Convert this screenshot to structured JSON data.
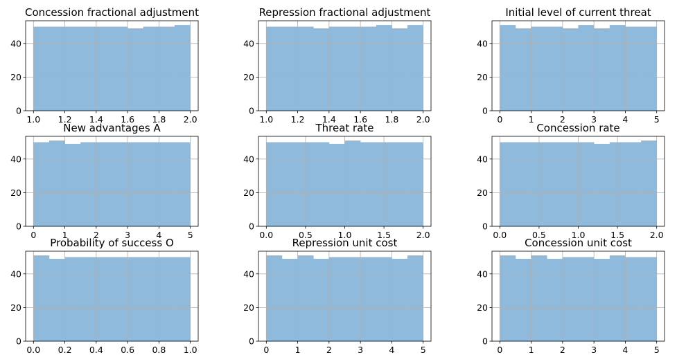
{
  "chart_data": [
    {
      "type": "bar",
      "title": "Concession fractional adjustment",
      "xlim": [
        1.0,
        2.0
      ],
      "ylim": [
        0,
        53.5
      ],
      "bins": 10,
      "values": [
        50,
        50,
        50,
        50,
        50,
        50,
        49,
        50,
        50,
        51
      ],
      "xticks": [
        "1.0",
        "1.2",
        "1.4",
        "1.6",
        "1.8",
        "2.0"
      ],
      "yticks": [
        "0",
        "20",
        "40"
      ],
      "grid": true
    },
    {
      "type": "bar",
      "title": "Repression fractional adjustment",
      "xlim": [
        1.0,
        2.0
      ],
      "ylim": [
        0,
        53.5
      ],
      "bins": 10,
      "values": [
        50,
        50,
        50,
        49,
        50,
        50,
        50,
        51,
        49,
        51
      ],
      "xticks": [
        "1.0",
        "1.2",
        "1.4",
        "1.6",
        "1.8",
        "2.0"
      ],
      "yticks": [
        "0",
        "20",
        "40"
      ],
      "grid": true
    },
    {
      "type": "bar",
      "title": "Initial level of current threat",
      "xlim": [
        0,
        5
      ],
      "ylim": [
        0,
        53.5
      ],
      "bins": 10,
      "values": [
        51,
        49,
        50,
        50,
        49,
        51,
        49,
        51,
        50,
        50
      ],
      "xticks": [
        "0",
        "1",
        "2",
        "3",
        "4",
        "5"
      ],
      "yticks": [
        "0",
        "20",
        "40"
      ],
      "grid": true
    },
    {
      "type": "bar",
      "title": "New advantages A",
      "xlim": [
        0,
        5
      ],
      "ylim": [
        0,
        53.5
      ],
      "bins": 10,
      "values": [
        50,
        51,
        49,
        50,
        50,
        50,
        50,
        50,
        50,
        50
      ],
      "xticks": [
        "0",
        "1",
        "2",
        "3",
        "4",
        "5"
      ],
      "yticks": [
        "0",
        "20",
        "40"
      ],
      "grid": true
    },
    {
      "type": "bar",
      "title": "Threat rate",
      "xlim": [
        0,
        2.0
      ],
      "ylim": [
        0,
        53.5
      ],
      "bins": 10,
      "values": [
        50,
        50,
        50,
        50,
        49,
        51,
        50,
        50,
        50,
        50
      ],
      "xticks": [
        "0.0",
        "0.5",
        "1.0",
        "1.5",
        "2.0"
      ],
      "yticks": [
        "0",
        "20",
        "40"
      ],
      "grid": true
    },
    {
      "type": "bar",
      "title": "Concession rate",
      "xlim": [
        0,
        2.0
      ],
      "ylim": [
        0,
        53.5
      ],
      "bins": 10,
      "values": [
        50,
        50,
        50,
        50,
        50,
        50,
        49,
        50,
        50,
        51
      ],
      "xticks": [
        "0.0",
        "0.5",
        "1.0",
        "1.5",
        "2.0"
      ],
      "yticks": [
        "0",
        "20",
        "40"
      ],
      "grid": true
    },
    {
      "type": "bar",
      "title": "Probability of success O",
      "xlim": [
        0,
        1.0
      ],
      "ylim": [
        0,
        53.5
      ],
      "bins": 10,
      "values": [
        51,
        49,
        50,
        50,
        50,
        50,
        50,
        50,
        50,
        50
      ],
      "xticks": [
        "0.0",
        "0.2",
        "0.4",
        "0.6",
        "0.8",
        "1.0"
      ],
      "yticks": [
        "0",
        "20",
        "40"
      ],
      "grid": true
    },
    {
      "type": "bar",
      "title": "Repression unit cost",
      "xlim": [
        0,
        5
      ],
      "ylim": [
        0,
        53.5
      ],
      "bins": 10,
      "values": [
        51,
        49,
        51,
        49,
        50,
        50,
        50,
        50,
        49,
        51
      ],
      "xticks": [
        "0",
        "1",
        "2",
        "3",
        "4",
        "5"
      ],
      "yticks": [
        "0",
        "20",
        "40"
      ],
      "grid": true
    },
    {
      "type": "bar",
      "title": "Concession unit cost",
      "xlim": [
        0,
        5
      ],
      "ylim": [
        0,
        53.5
      ],
      "bins": 10,
      "values": [
        51,
        49,
        51,
        49,
        50,
        50,
        49,
        51,
        50,
        50
      ],
      "xticks": [
        "0",
        "1",
        "2",
        "3",
        "4",
        "5"
      ],
      "yticks": [
        "0",
        "20",
        "40"
      ],
      "grid": true
    }
  ],
  "colors": {
    "bar": "#8fbadb",
    "grid": "#b0b0b0",
    "axis": "#000000"
  }
}
